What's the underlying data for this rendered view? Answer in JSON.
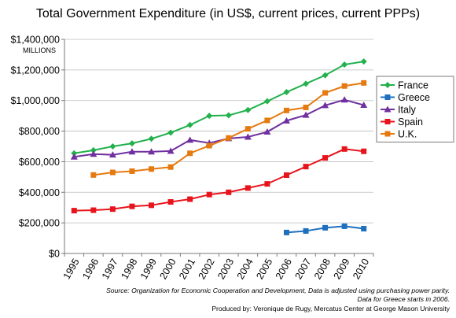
{
  "chart_data": {
    "type": "line",
    "title": "Total Government Expenditure (in US$, current prices, current PPPs)",
    "unit_label": "MILLIONS",
    "ylim": [
      0,
      1400000
    ],
    "yticks": [
      0,
      200000,
      400000,
      600000,
      800000,
      1000000,
      1200000,
      1400000
    ],
    "ytick_labels": [
      "$0",
      "$200,000",
      "$400,000",
      "$600,000",
      "$800,000",
      "$1,000,000",
      "$1,200,000",
      "$1,400,000"
    ],
    "grid": true,
    "legend_position": "right",
    "categories": [
      "1995",
      "1996",
      "1997",
      "1998",
      "1999",
      "2000",
      "2001",
      "2002",
      "2003",
      "2004",
      "2005",
      "2006",
      "2007",
      "2008",
      "2009",
      "2010"
    ],
    "series": [
      {
        "name": "France",
        "color": "#22b14c",
        "marker": "diamond",
        "values": [
          655000,
          675000,
          700000,
          720000,
          750000,
          790000,
          840000,
          900000,
          903000,
          938000,
          995000,
          1055000,
          1110000,
          1165000,
          1235000,
          1255000
        ]
      },
      {
        "name": "Greece",
        "color": "#1f6fbf",
        "marker": "square",
        "values": [
          null,
          null,
          null,
          null,
          null,
          null,
          null,
          null,
          null,
          null,
          null,
          137000,
          147000,
          168000,
          178000,
          162000
        ]
      },
      {
        "name": "Italy",
        "color": "#7030a0",
        "marker": "triangle",
        "values": [
          632000,
          650000,
          645000,
          665000,
          665000,
          670000,
          742000,
          722000,
          752000,
          762000,
          795000,
          868000,
          905000,
          968000,
          1005000,
          970000
        ]
      },
      {
        "name": "Spain",
        "color": "#e8141c",
        "marker": "square",
        "values": [
          280000,
          283000,
          290000,
          308000,
          315000,
          337000,
          355000,
          385000,
          400000,
          428000,
          455000,
          512000,
          568000,
          625000,
          683000,
          668000
        ]
      },
      {
        "name": "U.K.",
        "color": "#e57a10",
        "marker": "square",
        "values": [
          null,
          513000,
          530000,
          538000,
          552000,
          565000,
          655000,
          705000,
          755000,
          815000,
          870000,
          935000,
          955000,
          1050000,
          1095000,
          1115000
        ]
      }
    ],
    "source_note_line1": "Source: Organization for Economic Cooperation and Development, Data is adjusted using purchasing power parity.",
    "source_note_line2": "Data for Greece starts in 2006.",
    "credit": "Produced by: Veronique de Rugy, Mercatus Center at George Mason University"
  }
}
